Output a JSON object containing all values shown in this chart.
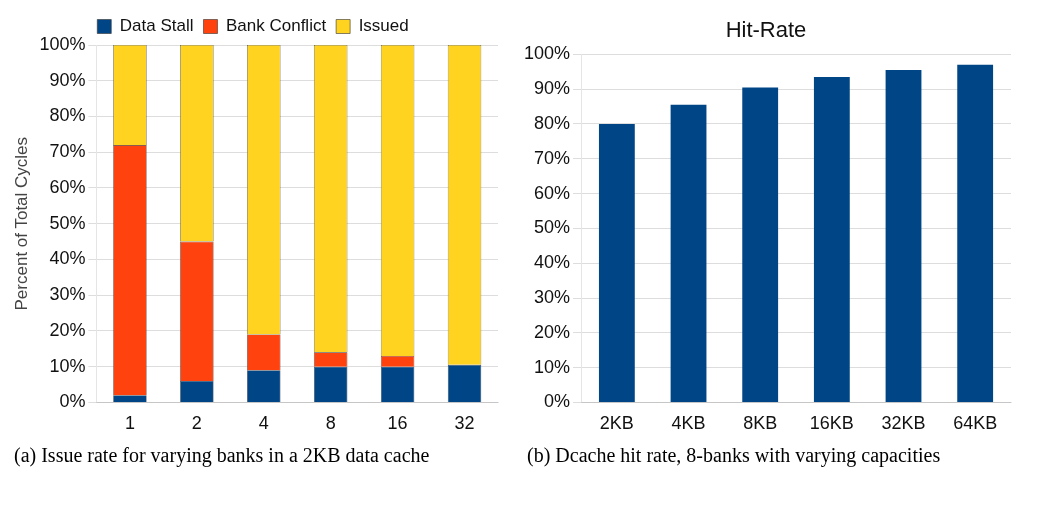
{
  "chart_data": [
    {
      "type": "bar",
      "stacked": true,
      "ylabel": "Percent of Total Cycles",
      "categories": [
        "1",
        "2",
        "4",
        "8",
        "16",
        "32"
      ],
      "series": [
        {
          "name": "Data Stall",
          "color": "#004586",
          "values": [
            2,
            6,
            9,
            10,
            10,
            10.5
          ]
        },
        {
          "name": "Bank Conflict",
          "color": "#ff420e",
          "values": [
            70,
            39,
            10,
            4,
            3,
            0
          ]
        },
        {
          "name": "Issued",
          "color": "#ffd320",
          "values": [
            28,
            55,
            81,
            86,
            87,
            89.5
          ]
        }
      ],
      "ylim": [
        0,
        100
      ],
      "yticks": [
        {
          "value": 0,
          "label": "0%"
        },
        {
          "value": 10,
          "label": "10%"
        },
        {
          "value": 20,
          "label": "20%"
        },
        {
          "value": 30,
          "label": "30%"
        },
        {
          "value": 40,
          "label": "40%"
        },
        {
          "value": 50,
          "label": "50%"
        },
        {
          "value": 60,
          "label": "60%"
        },
        {
          "value": 70,
          "label": "70%"
        },
        {
          "value": 80,
          "label": "80%"
        },
        {
          "value": 90,
          "label": "90%"
        },
        {
          "value": 100,
          "label": "100%"
        }
      ],
      "grid": "y",
      "legend": "top",
      "annotations": [
        "(a) Issue rate for varying banks in a 2KB data cache"
      ]
    },
    {
      "type": "bar",
      "title": "Hit-Rate",
      "categories": [
        "2KB",
        "4KB",
        "8KB",
        "16KB",
        "32KB",
        "64KB"
      ],
      "series": [
        {
          "color": "#004586",
          "values": [
            80,
            85.5,
            90.5,
            93.5,
            95.5,
            97
          ]
        }
      ],
      "ylim": [
        0,
        100
      ],
      "yticks": [
        {
          "value": 0,
          "label": "0%"
        },
        {
          "value": 10,
          "label": "10%"
        },
        {
          "value": 20,
          "label": "20%"
        },
        {
          "value": 30,
          "label": "30%"
        },
        {
          "value": 40,
          "label": "40%"
        },
        {
          "value": 50,
          "label": "50%"
        },
        {
          "value": 60,
          "label": "60%"
        },
        {
          "value": 70,
          "label": "70%"
        },
        {
          "value": 80,
          "label": "80%"
        },
        {
          "value": 90,
          "label": "90%"
        },
        {
          "value": 100,
          "label": "100%"
        }
      ],
      "grid": "y",
      "annotations": [
        "(b) Dcache hit rate, 8-banks with varying capacities"
      ]
    }
  ]
}
